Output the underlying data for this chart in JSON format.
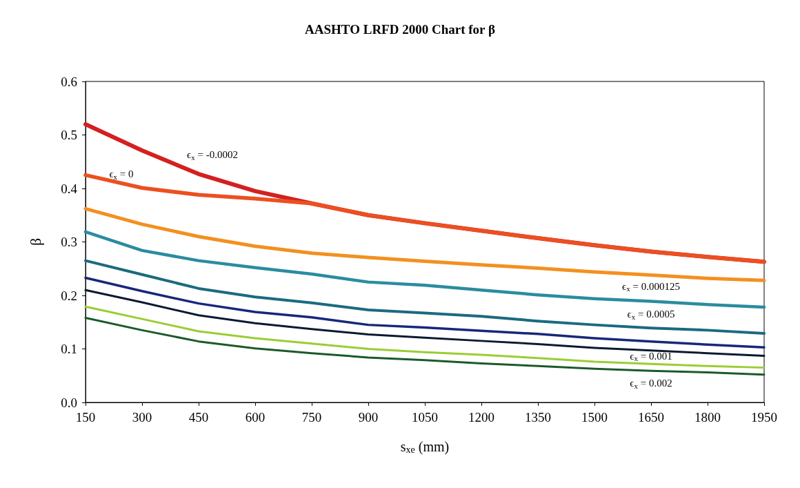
{
  "chart_data": {
    "type": "line",
    "title": "AASHTO LRFD 2000 Chart for β",
    "xlabel": "s$_{xe}$ (mm)",
    "ylabel": "β",
    "x": [
      150,
      300,
      450,
      600,
      750,
      900,
      1050,
      1200,
      1350,
      1500,
      1650,
      1800,
      1950
    ],
    "series": [
      {
        "name": "ϵ$_{x}$ = -0.0002",
        "color": "#d42020",
        "values": [
          0.52,
          0.471,
          0.427,
          0.395,
          0.372,
          0.35,
          0.335,
          0.321,
          0.307,
          0.294,
          0.282,
          0.272,
          0.263
        ]
      },
      {
        "name": "ϵ$_{x}$ = 0",
        "color": "#ec5020",
        "values": [
          0.425,
          0.401,
          0.388,
          0.381,
          0.372,
          0.35,
          0.335,
          0.321,
          0.307,
          0.294,
          0.282,
          0.272,
          0.263
        ]
      },
      {
        "name": "ϵ$_{x}$ = 0.000125",
        "color": "#f39020",
        "values": [
          0.362,
          0.333,
          0.31,
          0.292,
          0.279,
          0.271,
          0.264,
          0.257,
          0.251,
          0.244,
          0.238,
          0.232,
          0.228
        ]
      },
      {
        "color": "#2a8ca0",
        "values": [
          0.319,
          0.284,
          0.265,
          0.252,
          0.24,
          0.225,
          0.219,
          0.21,
          0.201,
          0.194,
          0.189,
          0.183,
          0.178
        ]
      },
      {
        "name": "ϵ$_{x}$ = 0.0005",
        "color": "#1a6a80",
        "values": [
          0.265,
          0.239,
          0.213,
          0.197,
          0.186,
          0.173,
          0.167,
          0.161,
          0.152,
          0.145,
          0.139,
          0.135,
          0.129
        ]
      },
      {
        "color": "#17287a",
        "values": [
          0.233,
          0.208,
          0.185,
          0.169,
          0.159,
          0.145,
          0.14,
          0.134,
          0.128,
          0.12,
          0.114,
          0.108,
          0.103
        ]
      },
      {
        "name": "ϵ$_{x}$ = 0.001",
        "color": "#0a1a30",
        "values": [
          0.21,
          0.187,
          0.163,
          0.148,
          0.137,
          0.127,
          0.121,
          0.115,
          0.109,
          0.102,
          0.097,
          0.092,
          0.087
        ]
      },
      {
        "color": "#9acd32",
        "values": [
          0.179,
          0.156,
          0.133,
          0.12,
          0.11,
          0.1,
          0.094,
          0.089,
          0.083,
          0.076,
          0.072,
          0.068,
          0.065
        ]
      },
      {
        "name": "ϵ$_{x}$ = 0.002",
        "color": "#1a5a2a",
        "values": [
          0.158,
          0.135,
          0.114,
          0.101,
          0.092,
          0.084,
          0.079,
          0.073,
          0.068,
          0.063,
          0.059,
          0.056,
          0.052
        ]
      }
    ],
    "xlim": [
      150,
      1950
    ],
    "xticks": [
      150,
      300,
      450,
      600,
      750,
      900,
      1050,
      1200,
      1350,
      1500,
      1650,
      1800,
      1950
    ],
    "ylim": [
      0,
      0.6
    ],
    "yticks": [
      {
        "value": 0,
        "label": "0.0"
      },
      0.1,
      0.2,
      0.3,
      0.4,
      0.5,
      0.6
    ],
    "grid": false,
    "marker": "none",
    "line_style": "solid"
  }
}
